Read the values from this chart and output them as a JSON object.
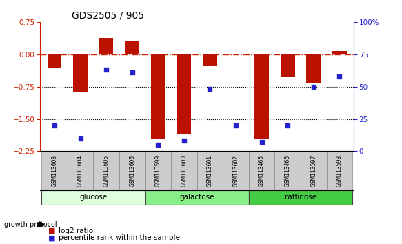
{
  "title": "GDS2505 / 905",
  "samples": [
    "GSM113603",
    "GSM113604",
    "GSM113605",
    "GSM113606",
    "GSM113599",
    "GSM113600",
    "GSM113601",
    "GSM113602",
    "GSM113465",
    "GSM113466",
    "GSM113597",
    "GSM113598"
  ],
  "log2_ratio": [
    -0.32,
    -0.88,
    0.38,
    0.32,
    -1.95,
    -1.85,
    -0.28,
    0.0,
    -1.95,
    -0.52,
    -0.68,
    0.08
  ],
  "percentile_rank": [
    20,
    10,
    63,
    61,
    5,
    8,
    48,
    20,
    7,
    20,
    50,
    58
  ],
  "ylim_left": [
    -2.25,
    0.75
  ],
  "ylim_right": [
    0,
    100
  ],
  "yticks_left": [
    -2.25,
    -1.5,
    -0.75,
    0,
    0.75
  ],
  "yticks_right": [
    0,
    25,
    50,
    75,
    100
  ],
  "hlines": [
    -0.75,
    -1.5
  ],
  "bar_color": "#bb1100",
  "dot_color": "#2222cc",
  "ref_line_color": "#cc2200",
  "groups": [
    {
      "label": "glucose",
      "start": 0,
      "end": 4,
      "color": "#ddffdd"
    },
    {
      "label": "galactose",
      "start": 4,
      "end": 8,
      "color": "#88ee88"
    },
    {
      "label": "raffinose",
      "start": 8,
      "end": 12,
      "color": "#44cc44"
    }
  ],
  "growth_protocol_label": "growth protocol",
  "legend_log2": "log2 ratio",
  "legend_pct": "percentile rank within the sample",
  "fig_width": 5.83,
  "fig_height": 3.54,
  "dpi": 100
}
